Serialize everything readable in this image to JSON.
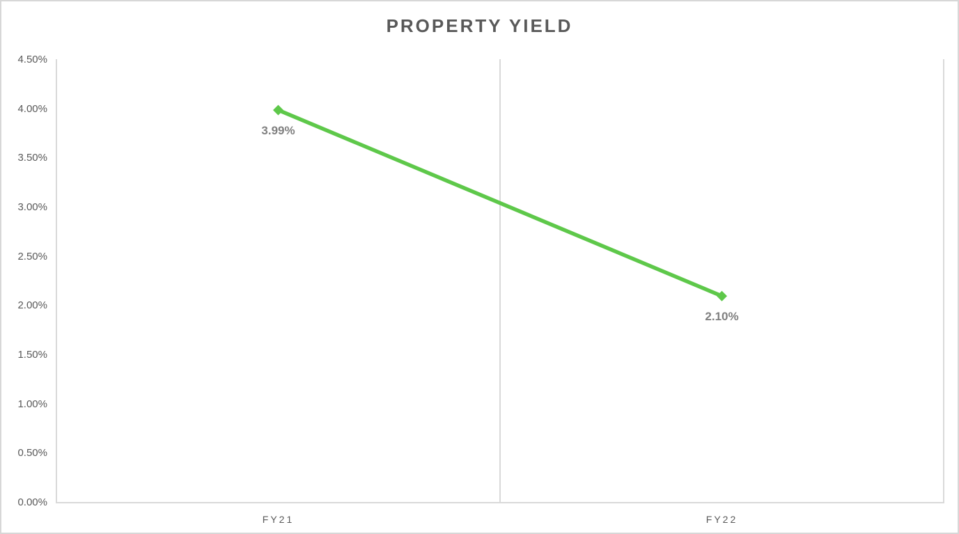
{
  "chart_data": {
    "type": "line",
    "title": "PROPERTY YIELD",
    "categories": [
      "FY21",
      "FY22"
    ],
    "series": [
      {
        "values": [
          3.99,
          2.1
        ],
        "data_labels": [
          "3.99%",
          "2.10%"
        ]
      }
    ],
    "xlabel": "",
    "ylabel": "",
    "ylim": [
      0,
      4.5
    ],
    "y_tick_step": 0.5,
    "y_tick_labels": [
      "0.00%",
      "0.50%",
      "1.00%",
      "1.50%",
      "2.00%",
      "2.50%",
      "3.00%",
      "3.50%",
      "4.00%",
      "4.50%"
    ],
    "grid": "vertical category-boundary gridlines only, no horizontal gridlines",
    "legend": "none",
    "marker_style": "diamond",
    "colors": {
      "line": "#5ec84a",
      "marker": "#5ec84a",
      "title_text": "#595959",
      "axis_text": "#595959",
      "data_label_text": "#7f7f7f",
      "axis_line": "#d9d9d9",
      "gridline": "#d9d9d9",
      "frame_border": "#d7d7d7",
      "background": "#ffffff"
    }
  }
}
